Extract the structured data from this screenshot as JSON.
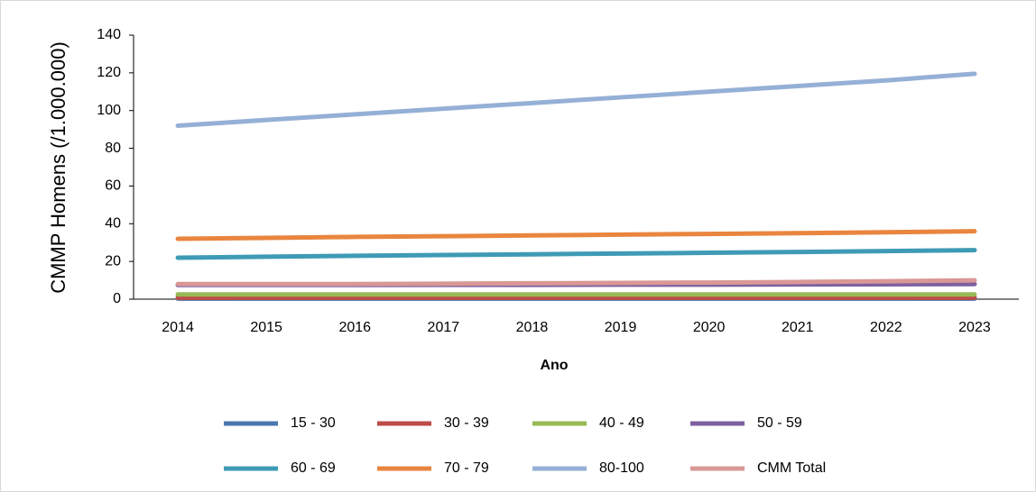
{
  "chart_data": {
    "type": "line",
    "x_label": "Ano",
    "y_label": "CMMP Homens (/1.000.000)",
    "categories": [
      "2014",
      "2015",
      "2016",
      "2017",
      "2018",
      "2019",
      "2020",
      "2021",
      "2022",
      "2023"
    ],
    "ylim": [
      0,
      140
    ],
    "yticks": [
      0,
      20,
      40,
      60,
      80,
      100,
      120,
      140
    ],
    "grid": false,
    "legend": "bottom",
    "series": [
      {
        "name": "15 - 30",
        "color": "#4a76ad",
        "values": [
          0.3,
          0.3,
          0.3,
          0.3,
          0.3,
          0.3,
          0.3,
          0.3,
          0.3,
          0.3
        ]
      },
      {
        "name": "30 - 39",
        "color": "#be4b48",
        "values": [
          0.8,
          0.8,
          0.8,
          0.8,
          0.8,
          0.8,
          0.8,
          0.8,
          0.8,
          0.8
        ]
      },
      {
        "name": "40 - 49",
        "color": "#98b954",
        "values": [
          2.5,
          2.5,
          2.5,
          2.5,
          2.5,
          2.5,
          2.5,
          2.5,
          2.5,
          2.5
        ]
      },
      {
        "name": "50 - 59",
        "color": "#7d60a0",
        "values": [
          7.5,
          7.5,
          7.5,
          7.6,
          7.6,
          7.7,
          7.7,
          7.8,
          7.9,
          8
        ]
      },
      {
        "name": "60 - 69",
        "color": "#3f9bb5",
        "values": [
          22,
          22.5,
          23,
          23.4,
          23.8,
          24.2,
          24.6,
          25,
          25.5,
          26
        ]
      },
      {
        "name": "70 - 79",
        "color": "#e9853f",
        "values": [
          32,
          32.5,
          33,
          33.4,
          33.8,
          34.2,
          34.6,
          35,
          35.5,
          36
        ]
      },
      {
        "name": "80-100",
        "color": "#95b0d6",
        "values": [
          92,
          95,
          98,
          101,
          104,
          107,
          110,
          113,
          116,
          119.5
        ]
      },
      {
        "name": "CMM Total",
        "color": "#d99795",
        "values": [
          8,
          8,
          8,
          8.2,
          8.4,
          8.6,
          8.8,
          9.1,
          9.5,
          10
        ]
      }
    ]
  }
}
